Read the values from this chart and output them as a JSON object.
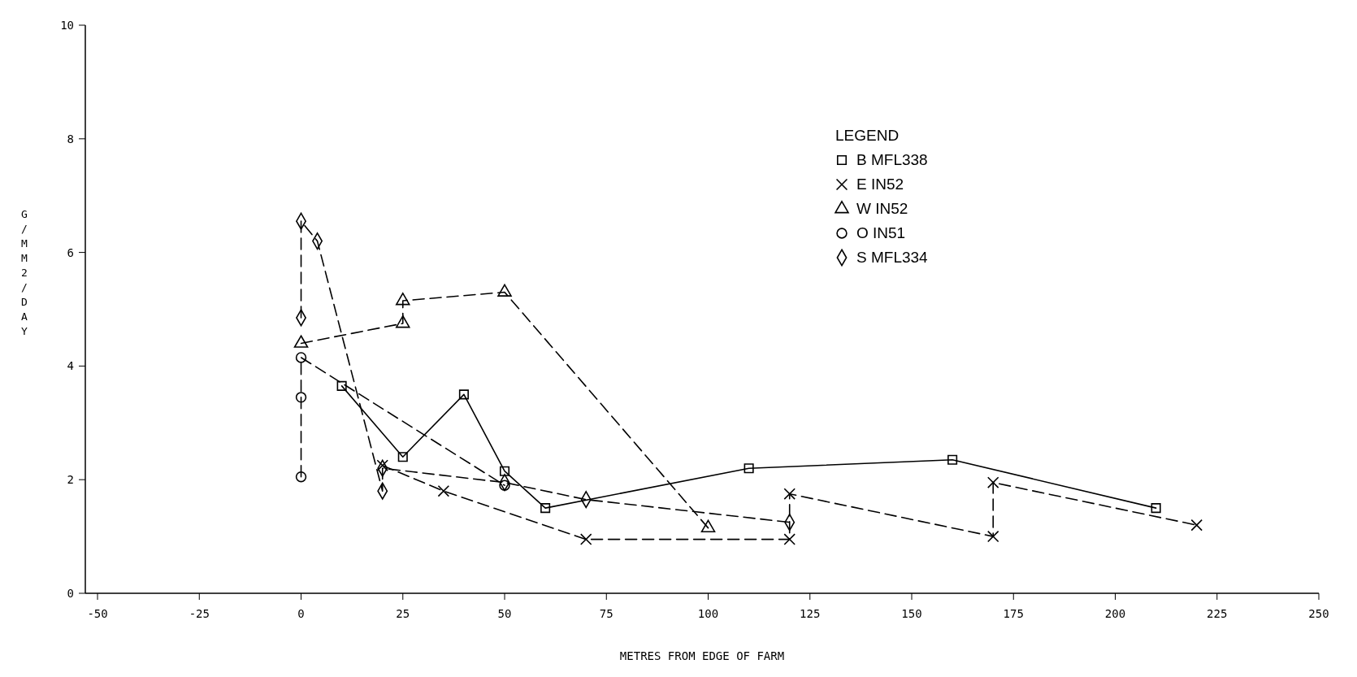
{
  "chart_data": {
    "type": "line",
    "xlabel": "METRES FROM EDGE OF FARM",
    "ylabel": "G/MM2/DAY",
    "legend_title": "LEGEND",
    "legend": "top right",
    "grid": false,
    "xlim": [
      -53,
      250
    ],
    "xticks": [
      -50,
      -25,
      0,
      25,
      50,
      75,
      100,
      125,
      150,
      175,
      200,
      225,
      250
    ],
    "ylim": [
      0,
      10
    ],
    "yticks": [
      0,
      2,
      4,
      6,
      8,
      10
    ],
    "series": [
      {
        "name": "B MFL338",
        "color": "#000000",
        "line_style": "solid",
        "marker": "square",
        "x": [
          10,
          25,
          40,
          50,
          60,
          110,
          160,
          210
        ],
        "values": [
          3.65,
          2.4,
          3.5,
          2.15,
          1.5,
          2.2,
          2.35,
          1.5
        ]
      },
      {
        "name": "E IN52",
        "color": "#000000",
        "line_style": "dashed",
        "marker": "cross",
        "x": [
          20,
          35,
          70,
          120,
          120,
          170,
          170,
          220
        ],
        "values": [
          2.25,
          1.8,
          0.95,
          0.95,
          1.75,
          1.0,
          1.95,
          1.2
        ]
      },
      {
        "name": "W IN52",
        "color": "#000000",
        "line_style": "dashed",
        "marker": "triangle",
        "x": [
          0,
          25,
          25,
          50,
          100
        ],
        "values": [
          4.4,
          4.75,
          5.15,
          5.3,
          1.15
        ]
      },
      {
        "name": "O IN51",
        "color": "#000000",
        "line_style": "dashed",
        "marker": "circle",
        "x": [
          0,
          0,
          0,
          50
        ],
        "values": [
          2.05,
          3.45,
          4.15,
          1.9
        ]
      },
      {
        "name": "S MFL334",
        "color": "#000000",
        "line_style": "dashed",
        "marker": "diamond",
        "x": [
          0,
          0,
          4,
          20,
          20,
          50,
          70,
          120
        ],
        "values": [
          4.85,
          6.55,
          6.2,
          1.8,
          2.2,
          1.95,
          1.65,
          1.25
        ]
      }
    ]
  }
}
